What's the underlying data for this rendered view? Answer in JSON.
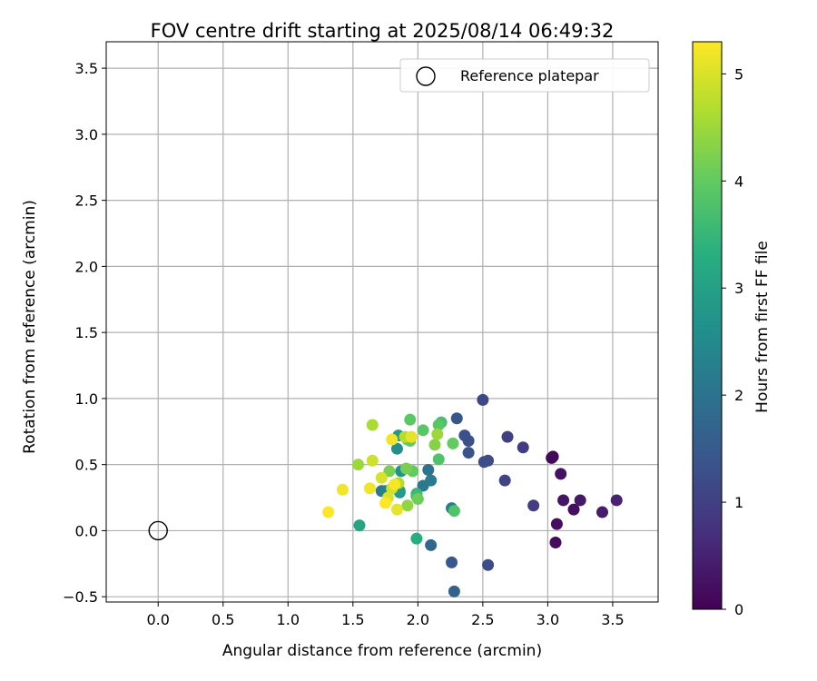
{
  "chart_data": {
    "type": "scatter",
    "title": "FOV centre drift starting at 2025/08/14 06:49:32",
    "xlabel": "Angular distance from reference (arcmin)",
    "ylabel": "Rotation from reference (arcmin)",
    "xlim": [
      -0.4,
      3.85
    ],
    "ylim": [
      -0.54,
      3.7
    ],
    "x_ticks": [
      0.0,
      0.5,
      1.0,
      1.5,
      2.0,
      2.5,
      3.0,
      3.5
    ],
    "x_tick_labels": [
      "0.0",
      "0.5",
      "1.0",
      "1.5",
      "2.0",
      "2.5",
      "3.0",
      "3.5"
    ],
    "y_ticks": [
      -0.5,
      0.0,
      0.5,
      1.0,
      1.5,
      2.0,
      2.5,
      3.0,
      3.5
    ],
    "y_tick_labels": [
      "−0.5",
      "0.0",
      "0.5",
      "1.0",
      "1.5",
      "2.0",
      "2.5",
      "3.0",
      "3.5"
    ],
    "grid": true,
    "legend": {
      "label": "Reference platepar",
      "placement": "top-right"
    },
    "reference_point": {
      "x": 0.0,
      "y": 0.0
    },
    "colorbar": {
      "label": "Hours from first FF file",
      "colormap": "viridis",
      "range": [
        0,
        5.3
      ],
      "ticks": [
        0,
        1,
        2,
        3,
        4,
        5
      ],
      "tick_labels": [
        "0",
        "1",
        "2",
        "3",
        "4",
        "5"
      ]
    },
    "points": [
      {
        "x": 3.04,
        "y": 0.56,
        "c": 0.05
      },
      {
        "x": 3.03,
        "y": 0.55,
        "c": 0.1
      },
      {
        "x": 3.06,
        "y": -0.09,
        "c": 0.15
      },
      {
        "x": 3.07,
        "y": 0.05,
        "c": 0.2
      },
      {
        "x": 3.1,
        "y": 0.43,
        "c": 0.25
      },
      {
        "x": 3.12,
        "y": 0.23,
        "c": 0.3
      },
      {
        "x": 3.2,
        "y": 0.16,
        "c": 0.2
      },
      {
        "x": 3.25,
        "y": 0.23,
        "c": 0.35
      },
      {
        "x": 3.42,
        "y": 0.14,
        "c": 0.4
      },
      {
        "x": 3.53,
        "y": 0.23,
        "c": 0.5
      },
      {
        "x": 2.89,
        "y": 0.19,
        "c": 0.95
      },
      {
        "x": 2.81,
        "y": 0.63,
        "c": 0.95
      },
      {
        "x": 2.69,
        "y": 0.71,
        "c": 1.0
      },
      {
        "x": 2.67,
        "y": 0.38,
        "c": 1.05
      },
      {
        "x": 2.5,
        "y": 0.99,
        "c": 1.15
      },
      {
        "x": 2.54,
        "y": 0.53,
        "c": 1.2
      },
      {
        "x": 2.51,
        "y": 0.52,
        "c": 1.25
      },
      {
        "x": 2.54,
        "y": -0.26,
        "c": 1.2
      },
      {
        "x": 2.39,
        "y": 0.68,
        "c": 1.3
      },
      {
        "x": 2.36,
        "y": 0.72,
        "c": 1.3
      },
      {
        "x": 2.39,
        "y": 0.59,
        "c": 1.35
      },
      {
        "x": 2.3,
        "y": 0.85,
        "c": 1.4
      },
      {
        "x": 2.26,
        "y": -0.24,
        "c": 1.45
      },
      {
        "x": 2.28,
        "y": -0.46,
        "c": 1.65
      },
      {
        "x": 2.1,
        "y": -0.11,
        "c": 1.75
      },
      {
        "x": 2.08,
        "y": 0.46,
        "c": 2.0
      },
      {
        "x": 2.04,
        "y": 0.34,
        "c": 2.1
      },
      {
        "x": 2.1,
        "y": 0.38,
        "c": 2.2
      },
      {
        "x": 2.26,
        "y": 0.17,
        "c": 2.3
      },
      {
        "x": 1.72,
        "y": 0.3,
        "c": 2.1
      },
      {
        "x": 1.75,
        "y": 0.3,
        "c": 2.3
      },
      {
        "x": 1.8,
        "y": 0.32,
        "c": 2.5
      },
      {
        "x": 1.86,
        "y": 0.29,
        "c": 2.6
      },
      {
        "x": 1.84,
        "y": 0.62,
        "c": 2.6
      },
      {
        "x": 1.87,
        "y": 0.45,
        "c": 2.7
      },
      {
        "x": 1.85,
        "y": 0.72,
        "c": 2.8
      },
      {
        "x": 1.86,
        "y": 0.3,
        "c": 2.9
      },
      {
        "x": 1.55,
        "y": 0.04,
        "c": 3.1
      },
      {
        "x": 1.99,
        "y": -0.06,
        "c": 3.3
      },
      {
        "x": 1.99,
        "y": 0.28,
        "c": 3.5
      },
      {
        "x": 1.99,
        "y": 0.26,
        "c": 3.6
      },
      {
        "x": 2.28,
        "y": 0.15,
        "c": 3.8
      },
      {
        "x": 2.16,
        "y": 0.54,
        "c": 3.8
      },
      {
        "x": 2.18,
        "y": 0.82,
        "c": 3.7
      },
      {
        "x": 2.16,
        "y": 0.8,
        "c": 3.9
      },
      {
        "x": 2.27,
        "y": 0.66,
        "c": 4.0
      },
      {
        "x": 2.04,
        "y": 0.76,
        "c": 3.9
      },
      {
        "x": 1.94,
        "y": 0.84,
        "c": 3.95
      },
      {
        "x": 1.92,
        "y": 0.69,
        "c": 3.85
      },
      {
        "x": 1.94,
        "y": 0.68,
        "c": 4.0
      },
      {
        "x": 1.96,
        "y": 0.45,
        "c": 4.0
      },
      {
        "x": 2.0,
        "y": 0.24,
        "c": 4.1
      },
      {
        "x": 1.91,
        "y": 0.47,
        "c": 4.2
      },
      {
        "x": 1.78,
        "y": 0.45,
        "c": 4.2
      },
      {
        "x": 2.13,
        "y": 0.65,
        "c": 4.3
      },
      {
        "x": 2.15,
        "y": 0.73,
        "c": 4.5
      },
      {
        "x": 1.92,
        "y": 0.19,
        "c": 4.4
      },
      {
        "x": 1.54,
        "y": 0.5,
        "c": 4.5
      },
      {
        "x": 1.65,
        "y": 0.8,
        "c": 4.6
      },
      {
        "x": 1.9,
        "y": 0.71,
        "c": 4.7
      },
      {
        "x": 1.85,
        "y": 0.36,
        "c": 4.7
      },
      {
        "x": 1.65,
        "y": 0.53,
        "c": 4.9
      },
      {
        "x": 1.8,
        "y": 0.32,
        "c": 4.9
      },
      {
        "x": 1.77,
        "y": 0.25,
        "c": 5.0
      },
      {
        "x": 1.72,
        "y": 0.4,
        "c": 5.0
      },
      {
        "x": 1.84,
        "y": 0.16,
        "c": 5.1
      },
      {
        "x": 1.95,
        "y": 0.71,
        "c": 5.1
      },
      {
        "x": 1.8,
        "y": 0.69,
        "c": 5.2
      },
      {
        "x": 1.63,
        "y": 0.32,
        "c": 5.2
      },
      {
        "x": 1.42,
        "y": 0.31,
        "c": 5.2
      },
      {
        "x": 1.31,
        "y": 0.14,
        "c": 5.3
      },
      {
        "x": 1.75,
        "y": 0.21,
        "c": 5.3
      },
      {
        "x": 1.82,
        "y": 0.35,
        "c": 5.25
      }
    ]
  }
}
